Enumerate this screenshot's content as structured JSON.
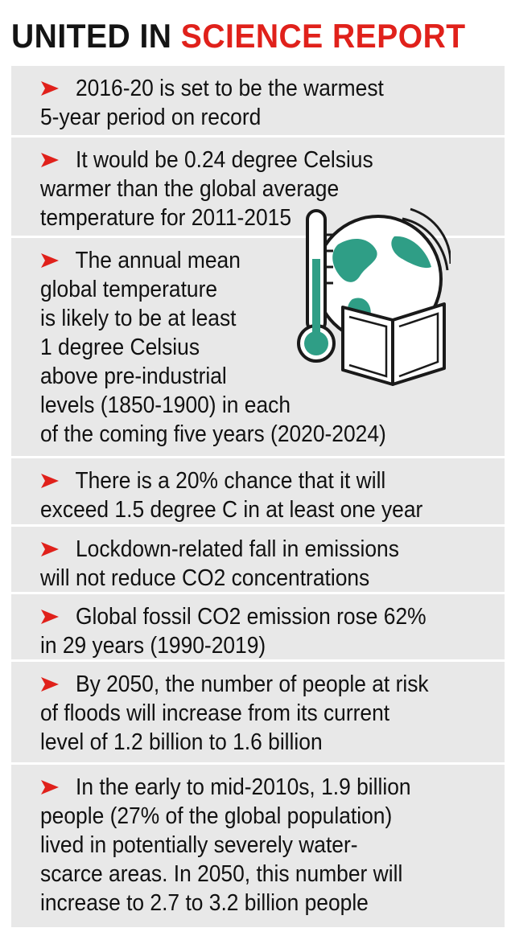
{
  "header": {
    "title_part1": "UNITED IN",
    "title_part2": "SCIENCE REPORT"
  },
  "colors": {
    "accent_red": "#e0211b",
    "panel_bg": "#e8e8e8",
    "illustration_teal": "#2f9e86"
  },
  "items": [
    {
      "text": "      2016-20 is set to be the warmest\n5-year period on record"
    },
    {
      "text": "      It would be 0.24 degree Celsius\nwarmer than the global average\ntemperature for 2011-2015"
    },
    {
      "text": "      The annual mean\nglobal temperature\nis likely to be at least\n1 degree Celsius\nabove pre-industrial\nlevels (1850-1900) in each\nof the coming five years (2020-2024)"
    },
    {
      "text": "      There is a 20% chance that it will\nexceed 1.5 degree C in at least one year"
    },
    {
      "text": "      Lockdown-related fall in emissions\nwill not reduce CO2 concentrations"
    },
    {
      "text": "      Global fossil CO2 emission rose 62%\nin 29 years (1990-2019)"
    },
    {
      "text": "      By 2050, the number of people at risk\nof floods will increase from its current\nlevel of 1.2 billion to 1.6 billion"
    },
    {
      "text": "      In the early to mid-2010s, 1.9 billion\npeople (27% of the global population)\nlived in potentially severely water-\nscarce areas. In 2050, this number will\nincrease to 2.7 to 3.2 billion people"
    }
  ],
  "illustration": {
    "icons": [
      "thermometer-icon",
      "globe-icon",
      "open-book-icon"
    ]
  }
}
